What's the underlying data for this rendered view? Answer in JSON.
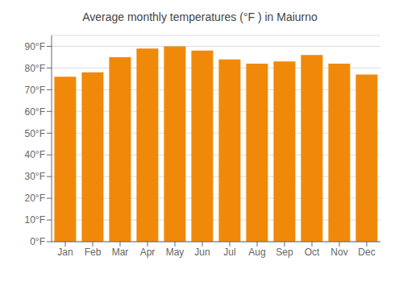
{
  "chart_data": {
    "type": "bar",
    "title": "Average monthly temperatures (°F ) in Maiurno",
    "categories": [
      "Jan",
      "Feb",
      "Mar",
      "Apr",
      "May",
      "Jun",
      "Jul",
      "Aug",
      "Sep",
      "Oct",
      "Nov",
      "Dec"
    ],
    "values": [
      76,
      78,
      85,
      89,
      90,
      88,
      84,
      82,
      83,
      86,
      82,
      77
    ],
    "color": "#F0890A",
    "ylim": [
      0,
      95
    ],
    "yticks": [
      {
        "value": 0,
        "label": "0°F"
      },
      {
        "value": 10,
        "label": "10°F"
      },
      {
        "value": 20,
        "label": "20°F"
      },
      {
        "value": 30,
        "label": "30°F"
      },
      {
        "value": 40,
        "label": "40°F"
      },
      {
        "value": 50,
        "label": "50°F"
      },
      {
        "value": 60,
        "label": "60°F"
      },
      {
        "value": 70,
        "label": "70°F"
      },
      {
        "value": 80,
        "label": "80°F"
      },
      {
        "value": 90,
        "label": "90°F"
      }
    ],
    "grid": true
  }
}
